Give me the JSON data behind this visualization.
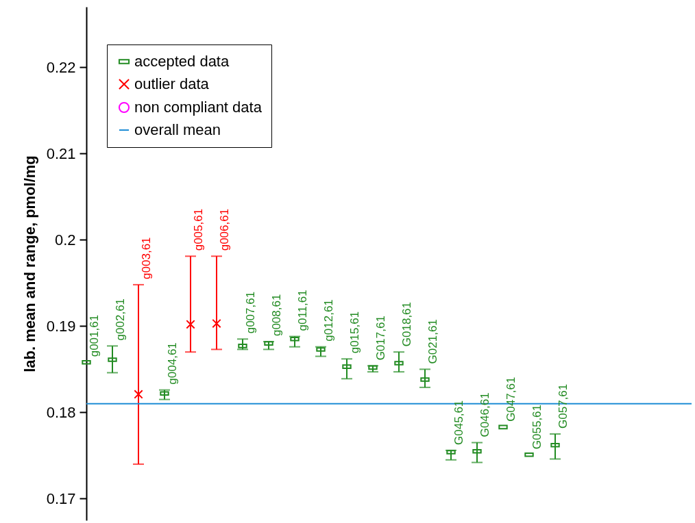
{
  "chart_data": {
    "type": "scatter",
    "ylabel": "lab. mean and range, pmol/mg",
    "categories": [
      "g001,61",
      "g002,61",
      "g003,61",
      "g004,61",
      "g005,61",
      "g006,61",
      "g007,61",
      "g008,61",
      "g011,61",
      "g012,61",
      "g015,61",
      "G017,61",
      "G018,61",
      "G021,61",
      "G045,61",
      "G046,61",
      "G047,61",
      "G055,61",
      "G057,61"
    ],
    "series": [
      {
        "name": "accepted data",
        "color": "#228b22",
        "marker": "square",
        "values": [
          0.1858,
          0.1861,
          null,
          0.1822,
          null,
          null,
          0.1877,
          0.188,
          0.1885,
          0.1873,
          0.1853,
          0.1852,
          0.1857,
          0.1838,
          0.1754,
          0.1755,
          0.1783,
          0.1751,
          0.1762
        ],
        "errors": [
          null,
          [
            0.1846,
            0.1877
          ],
          null,
          [
            0.1815,
            0.1826
          ],
          null,
          null,
          [
            0.1873,
            0.1885
          ],
          [
            0.1873,
            0.1882
          ],
          [
            0.1876,
            0.1888
          ],
          [
            0.1865,
            0.1876
          ],
          [
            0.1839,
            0.1862
          ],
          [
            0.1847,
            0.1854
          ],
          [
            0.1847,
            0.187
          ],
          [
            0.1829,
            0.185
          ],
          [
            0.1745,
            0.1756
          ],
          [
            0.1742,
            0.1765
          ],
          null,
          null,
          [
            0.1746,
            0.1775
          ]
        ]
      },
      {
        "name": "outlier data",
        "color": "#ff0000",
        "marker": "cross",
        "values": [
          null,
          null,
          0.1821,
          null,
          0.1902,
          0.1903,
          null,
          null,
          null,
          null,
          null,
          null,
          null,
          null,
          null,
          null,
          null,
          null,
          null
        ],
        "errors": [
          null,
          null,
          [
            0.174,
            0.1948
          ],
          null,
          [
            0.187,
            0.1981
          ],
          [
            0.1873,
            0.1981
          ],
          null,
          null,
          null,
          null,
          null,
          null,
          null,
          null,
          null,
          null,
          null,
          null,
          null
        ]
      },
      {
        "name": "non compliant data",
        "color": "#ff00ff",
        "marker": "circle",
        "values": [
          null,
          null,
          null,
          null,
          null,
          null,
          null,
          null,
          null,
          null,
          null,
          null,
          null,
          null,
          null,
          null,
          null,
          null,
          null
        ]
      }
    ],
    "ref_lines": [
      {
        "axis": "y",
        "value": 0.181,
        "label": "overall mean",
        "color": "#1f8dd6"
      }
    ],
    "ylim": [
      0.1675,
      0.227
    ],
    "yticks": [
      0.17,
      0.18,
      0.19,
      0.2,
      0.21,
      0.22
    ],
    "grid": false,
    "legend": "top left",
    "tick_labels": "y"
  }
}
